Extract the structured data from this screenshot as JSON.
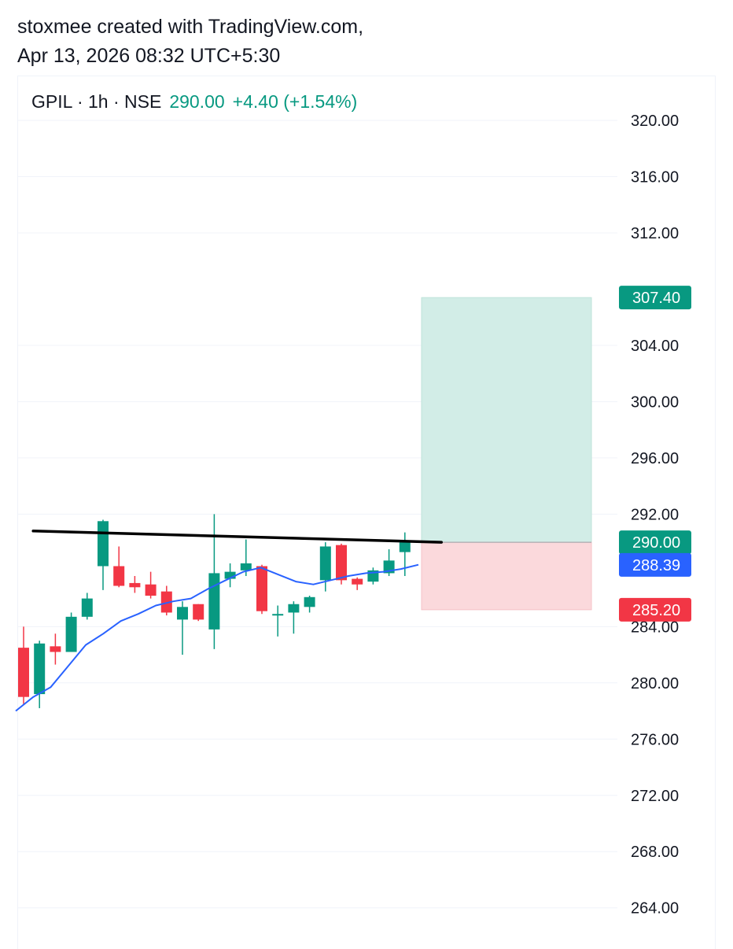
{
  "header": {
    "line1": "stoxmee created with TradingView.com,",
    "line2": "Apr 13, 2026 08:32 UTC+5:30"
  },
  "legend": {
    "symbol": "GPIL · 1h · NSE",
    "last": "290.00",
    "change": "+4.40 (+1.54%)"
  },
  "colors": {
    "up": "#089981",
    "down": "#f23645",
    "ma": "#2962ff",
    "trendline": "#000000",
    "target_zone": "#d2ede7",
    "stop_zone": "#fbd9dc",
    "grid": "#f0f3fa"
  },
  "chart_data": {
    "type": "candlestick",
    "ylim": [
      262,
      322
    ],
    "y_ticks": [
      "320.00",
      "316.00",
      "312.00",
      "304.00",
      "300.00",
      "296.00",
      "292.00",
      "284.00",
      "280.00",
      "276.00",
      "272.00",
      "268.00",
      "264.00"
    ],
    "candles": [
      {
        "o": 282.5,
        "h": 284.0,
        "l": 278.5,
        "c": 279.0
      },
      {
        "o": 279.2,
        "h": 283.0,
        "l": 278.2,
        "c": 282.8
      },
      {
        "o": 282.6,
        "h": 283.5,
        "l": 281.3,
        "c": 282.2
      },
      {
        "o": 282.2,
        "h": 285.0,
        "l": 282.2,
        "c": 284.7
      },
      {
        "o": 284.7,
        "h": 286.4,
        "l": 284.5,
        "c": 286.0
      },
      {
        "o": 288.3,
        "h": 291.6,
        "l": 286.6,
        "c": 291.5
      },
      {
        "o": 288.3,
        "h": 289.7,
        "l": 286.8,
        "c": 286.9
      },
      {
        "o": 287.1,
        "h": 287.6,
        "l": 286.4,
        "c": 286.8
      },
      {
        "o": 287.0,
        "h": 287.9,
        "l": 286.0,
        "c": 286.2
      },
      {
        "o": 286.5,
        "h": 286.9,
        "l": 284.8,
        "c": 285.0
      },
      {
        "o": 284.5,
        "h": 285.8,
        "l": 282.0,
        "c": 285.4
      },
      {
        "o": 285.6,
        "h": 285.6,
        "l": 284.4,
        "c": 284.5
      },
      {
        "o": 283.8,
        "h": 292.0,
        "l": 282.4,
        "c": 287.8
      },
      {
        "o": 287.4,
        "h": 288.5,
        "l": 286.8,
        "c": 287.9
      },
      {
        "o": 288.0,
        "h": 290.2,
        "l": 287.6,
        "c": 288.5
      },
      {
        "o": 288.3,
        "h": 288.4,
        "l": 284.9,
        "c": 285.1
      },
      {
        "o": 284.9,
        "h": 285.5,
        "l": 283.3,
        "c": 284.9
      },
      {
        "o": 285.0,
        "h": 285.8,
        "l": 283.5,
        "c": 285.6
      },
      {
        "o": 285.4,
        "h": 286.2,
        "l": 285.0,
        "c": 286.1
      },
      {
        "o": 287.3,
        "h": 290.0,
        "l": 286.5,
        "c": 289.7
      },
      {
        "o": 289.8,
        "h": 289.9,
        "l": 287.0,
        "c": 287.3
      },
      {
        "o": 287.4,
        "h": 287.5,
        "l": 286.6,
        "c": 287.0
      },
      {
        "o": 287.2,
        "h": 288.2,
        "l": 287.0,
        "c": 288.0
      },
      {
        "o": 287.8,
        "h": 289.5,
        "l": 287.6,
        "c": 288.7
      },
      {
        "o": 289.3,
        "h": 290.7,
        "l": 287.6,
        "c": 290.0
      }
    ],
    "ma": [
      278.0,
      279.0,
      279.7,
      281.2,
      282.7,
      283.5,
      284.4,
      284.9,
      285.5,
      285.8,
      286.0,
      286.7,
      287.3,
      287.9,
      288.2,
      287.7,
      287.2,
      287.0,
      287.3,
      287.6,
      287.8,
      287.9,
      288.1,
      288.4
    ],
    "trendline": {
      "from": {
        "index": 1,
        "price": 290.8
      },
      "to": {
        "index": 26.3,
        "price": 290.0
      }
    },
    "position": {
      "entry": 290.0,
      "target": 307.4,
      "stop": 285.2
    },
    "price_labels": [
      {
        "label": "307.40",
        "price": 307.4,
        "kind": "target"
      },
      {
        "label": "290.00",
        "price": 290.0,
        "kind": "last"
      },
      {
        "label": "288.39",
        "price": 288.39,
        "kind": "ma"
      },
      {
        "label": "285.20",
        "price": 285.2,
        "kind": "stop"
      }
    ]
  }
}
